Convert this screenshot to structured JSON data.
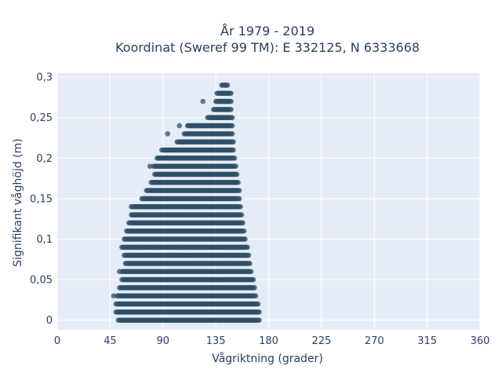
{
  "chart_data": {
    "type": "scatter",
    "title_line1": "År 1979 - 2019",
    "title_line2": "Koordinat (Sweref 99 TM): E 332125, N 6333668",
    "xlabel": "Vågriktning (grader)",
    "ylabel": "Signifikant våghöjd (m)",
    "xlim": [
      0,
      360
    ],
    "ylim": [
      -0.012,
      0.305
    ],
    "x_ticks": [
      0,
      45,
      90,
      135,
      180,
      225,
      270,
      315,
      360
    ],
    "x_tick_labels": [
      "0",
      "45",
      "90",
      "135",
      "180",
      "225",
      "270",
      "315",
      "360"
    ],
    "y_ticks": [
      0,
      0.05,
      0.1,
      0.15,
      0.2,
      0.25,
      0.3
    ],
    "y_tick_labels": [
      "0",
      "0,05",
      "0,1",
      "0,15",
      "0,2",
      "0,25",
      "0,3"
    ],
    "grid": true,
    "marker_color": "#2f4f66",
    "plot_bg": "#e5ecf6",
    "rows": [
      {
        "y": 0.0,
        "x_min": 52,
        "x_max": 172
      },
      {
        "y": 0.01,
        "x_min": 50,
        "x_max": 172
      },
      {
        "y": 0.02,
        "x_min": 50,
        "x_max": 171
      },
      {
        "y": 0.03,
        "x_min": 51,
        "x_max": 169
      },
      {
        "y": 0.04,
        "x_min": 53,
        "x_max": 168
      },
      {
        "y": 0.05,
        "x_min": 55,
        "x_max": 167
      },
      {
        "y": 0.06,
        "x_min": 55,
        "x_max": 165
      },
      {
        "y": 0.07,
        "x_min": 58,
        "x_max": 164
      },
      {
        "y": 0.08,
        "x_min": 57,
        "x_max": 163
      },
      {
        "y": 0.09,
        "x_min": 56,
        "x_max": 162
      },
      {
        "y": 0.1,
        "x_min": 57,
        "x_max": 160
      },
      {
        "y": 0.11,
        "x_min": 59,
        "x_max": 159
      },
      {
        "y": 0.12,
        "x_min": 61,
        "x_max": 158
      },
      {
        "y": 0.13,
        "x_min": 63,
        "x_max": 157
      },
      {
        "y": 0.14,
        "x_min": 63,
        "x_max": 156
      },
      {
        "y": 0.15,
        "x_min": 72,
        "x_max": 155
      },
      {
        "y": 0.16,
        "x_min": 76,
        "x_max": 155
      },
      {
        "y": 0.17,
        "x_min": 80,
        "x_max": 154
      },
      {
        "y": 0.18,
        "x_min": 83,
        "x_max": 153
      },
      {
        "y": 0.19,
        "x_min": 82,
        "x_max": 152
      },
      {
        "y": 0.2,
        "x_min": 85,
        "x_max": 151
      },
      {
        "y": 0.21,
        "x_min": 89,
        "x_max": 150
      },
      {
        "y": 0.22,
        "x_min": 102,
        "x_max": 150
      },
      {
        "y": 0.23,
        "x_min": 108,
        "x_max": 149
      },
      {
        "y": 0.24,
        "x_min": 112,
        "x_max": 149
      },
      {
        "y": 0.25,
        "x_min": 128,
        "x_max": 149
      },
      {
        "y": 0.26,
        "x_min": 133,
        "x_max": 148
      },
      {
        "y": 0.27,
        "x_min": 135,
        "x_max": 148
      },
      {
        "y": 0.28,
        "x_min": 136,
        "x_max": 148
      },
      {
        "y": 0.29,
        "x_min": 140,
        "x_max": 145
      }
    ],
    "outliers": [
      {
        "x": 92,
        "y": 0.0
      },
      {
        "x": 113,
        "y": 0.0
      },
      {
        "x": 48,
        "y": 0.03
      },
      {
        "x": 53,
        "y": 0.06
      },
      {
        "x": 55,
        "y": 0.09
      },
      {
        "x": 79,
        "y": 0.19
      },
      {
        "x": 91,
        "y": 0.19
      },
      {
        "x": 94,
        "y": 0.23
      },
      {
        "x": 104,
        "y": 0.24
      },
      {
        "x": 111,
        "y": 0.24
      },
      {
        "x": 124,
        "y": 0.27
      }
    ]
  }
}
